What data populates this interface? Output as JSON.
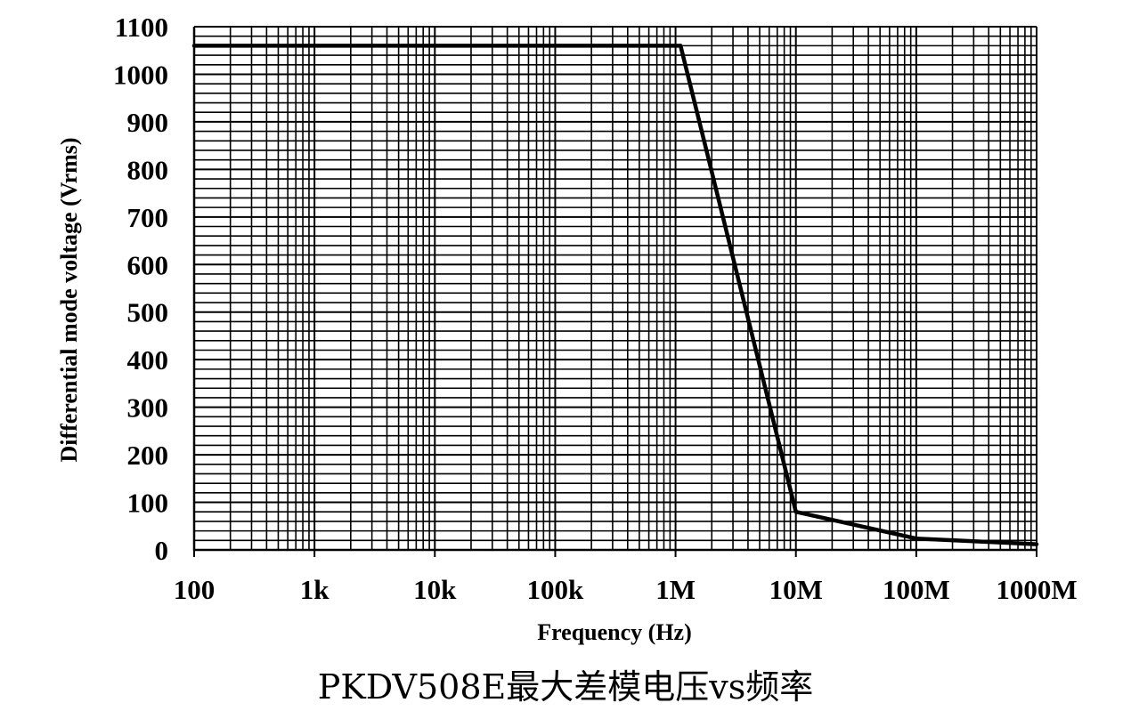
{
  "caption": "PKDV508E最大差模电压vs频率",
  "chart_data": {
    "type": "line",
    "title": "",
    "xlabel": "Frequency (Hz)",
    "ylabel": "Differential mode voltage (Vrms)",
    "x_scale": "log",
    "xlim": [
      100,
      1000000000
    ],
    "ylim": [
      0,
      1100
    ],
    "x_ticks": [
      {
        "value": 100,
        "label": "100"
      },
      {
        "value": 1000,
        "label": "1k"
      },
      {
        "value": 10000,
        "label": "10k"
      },
      {
        "value": 100000,
        "label": "100k"
      },
      {
        "value": 1000000,
        "label": "1M"
      },
      {
        "value": 10000000,
        "label": "10M"
      },
      {
        "value": 100000000,
        "label": "100M"
      },
      {
        "value": 1000000000,
        "label": "1000M"
      }
    ],
    "y_ticks": [
      0,
      100,
      200,
      300,
      400,
      500,
      600,
      700,
      800,
      900,
      1000,
      1100
    ],
    "y_minor_step": 20,
    "grid": true,
    "series": [
      {
        "color": "#000000",
        "points": [
          {
            "x": 100,
            "y": 1060
          },
          {
            "x": 1100000,
            "y": 1060
          },
          {
            "x": 10000000,
            "y": 80
          },
          {
            "x": 100000000,
            "y": 24
          },
          {
            "x": 1000000000,
            "y": 12
          }
        ]
      }
    ]
  }
}
